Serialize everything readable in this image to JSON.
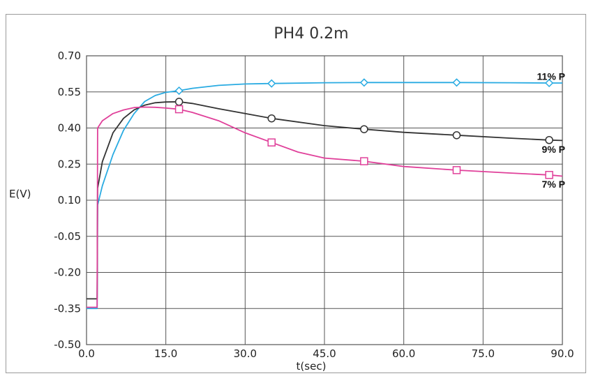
{
  "chart_data": {
    "type": "line",
    "title": "PH4 0.2m",
    "xlabel": "t(sec)",
    "ylabel": "E(V)",
    "xlim": [
      0,
      90
    ],
    "ylim": [
      -0.5,
      0.7
    ],
    "xticks": [
      "0.0",
      "15.0",
      "30.0",
      "45.0",
      "60.0",
      "75.0",
      "90.0"
    ],
    "yticks": [
      "0.70",
      "0.55",
      "0.40",
      "0.25",
      "0.10",
      "-0.05",
      "-0.20",
      "-0.35",
      "-0.50"
    ],
    "grid": true,
    "series": [
      {
        "name": "11% P",
        "color": "#29abe2",
        "marker": "diamond",
        "x": [
          0,
          2,
          2.1,
          3,
          5,
          7,
          9,
          11,
          13,
          15,
          17.5,
          20,
          25,
          30,
          35,
          45,
          52.5,
          60,
          70,
          80,
          87.5,
          90
        ],
        "y": [
          -0.35,
          -0.35,
          0.08,
          0.16,
          0.29,
          0.39,
          0.46,
          0.51,
          0.535,
          0.548,
          0.555,
          0.565,
          0.577,
          0.583,
          0.585,
          0.588,
          0.589,
          0.589,
          0.589,
          0.588,
          0.587,
          0.587
        ],
        "markers_x": [
          17.5,
          35,
          52.5,
          70,
          87.5
        ],
        "markers_y": [
          0.555,
          0.585,
          0.589,
          0.589,
          0.587
        ]
      },
      {
        "name": "9% P",
        "color": "#333333",
        "marker": "circle",
        "x": [
          0,
          2,
          2.1,
          3,
          5,
          7,
          9,
          11,
          13,
          15,
          17.5,
          20,
          25,
          30,
          35,
          45,
          52.5,
          60,
          70,
          80,
          87.5,
          90
        ],
        "y": [
          -0.31,
          -0.31,
          0.15,
          0.26,
          0.38,
          0.44,
          0.475,
          0.495,
          0.505,
          0.508,
          0.509,
          0.502,
          0.48,
          0.46,
          0.44,
          0.41,
          0.395,
          0.382,
          0.37,
          0.358,
          0.35,
          0.348
        ],
        "markers_x": [
          17.5,
          35,
          52.5,
          70,
          87.5
        ],
        "markers_y": [
          0.509,
          0.44,
          0.395,
          0.37,
          0.35
        ]
      },
      {
        "name": "7% P",
        "color": "#e0409a",
        "marker": "square",
        "x": [
          0,
          2,
          2.1,
          3,
          5,
          7,
          9,
          11,
          13,
          15,
          17.5,
          20,
          25,
          30,
          35,
          40,
          45,
          52.5,
          60,
          70,
          80,
          87.5,
          90
        ],
        "y": [
          -0.345,
          -0.345,
          0.4,
          0.43,
          0.46,
          0.475,
          0.485,
          0.487,
          0.486,
          0.483,
          0.478,
          0.465,
          0.43,
          0.38,
          0.34,
          0.3,
          0.275,
          0.262,
          0.24,
          0.225,
          0.213,
          0.205,
          0.2
        ],
        "markers_x": [
          17.5,
          35,
          52.5,
          70,
          87.5
        ],
        "markers_y": [
          0.478,
          0.34,
          0.262,
          0.225,
          0.205
        ]
      }
    ]
  }
}
